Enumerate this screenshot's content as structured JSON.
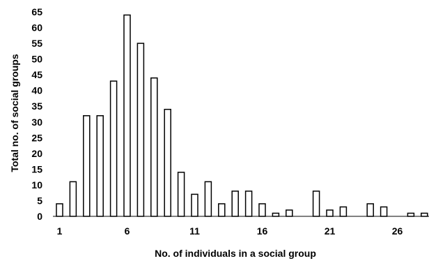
{
  "chart_data": {
    "type": "bar",
    "x": [
      1,
      2,
      3,
      4,
      5,
      6,
      7,
      8,
      9,
      10,
      11,
      12,
      13,
      14,
      15,
      16,
      17,
      18,
      19,
      20,
      21,
      22,
      23,
      24,
      25,
      26,
      27,
      28
    ],
    "values": [
      4,
      11,
      32,
      32,
      43,
      64,
      55,
      44,
      34,
      14,
      7,
      11,
      4,
      8,
      8,
      4,
      1,
      2,
      0,
      8,
      2,
      3,
      0,
      4,
      3,
      0,
      1,
      1
    ],
    "xticks": [
      1,
      6,
      11,
      16,
      21,
      26
    ],
    "xtick_labels": [
      "1",
      "6",
      "11",
      "16",
      "21",
      "26"
    ],
    "yticks": [
      0,
      5,
      10,
      15,
      20,
      25,
      30,
      35,
      40,
      45,
      50,
      55,
      60,
      65
    ],
    "ytick_labels": [
      "0",
      "5",
      "10",
      "15",
      "20",
      "25",
      "30",
      "35",
      "40",
      "45",
      "50",
      "55",
      "60",
      "65"
    ],
    "ylim": [
      0,
      65
    ],
    "xlabel": "No. of individuals  in a social group",
    "ylabel": "Total no. of social groups",
    "title": "",
    "grid": false,
    "bar_fill": "#ffffff",
    "bar_stroke": "#000000"
  }
}
